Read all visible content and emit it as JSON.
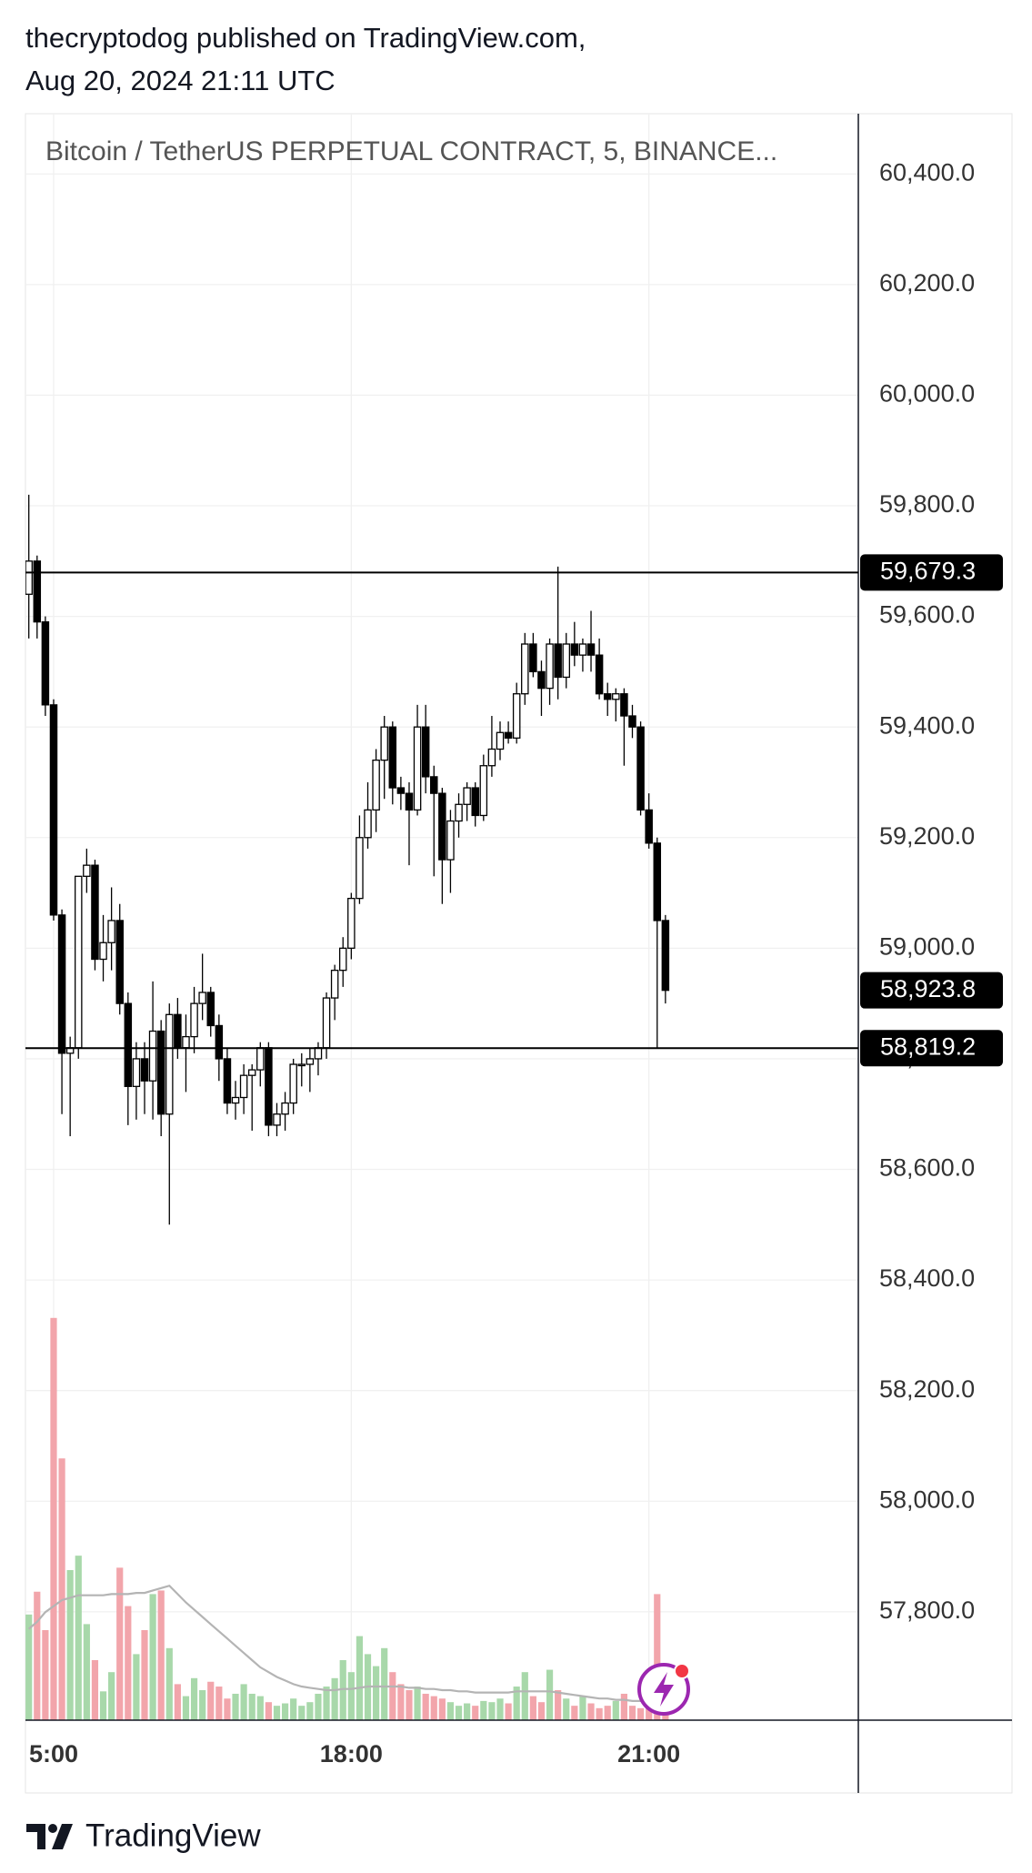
{
  "header": {
    "line1": "thecryptodog published on TradingView.com,",
    "line2": "Aug 20, 2024 21:11 UTC"
  },
  "chart_data": {
    "type": "candlestick",
    "title": "Bitcoin / TetherUS PERPETUAL CONTRACT, 5, BINANCE...",
    "categories": [
      null,
      null,
      null,
      "5:00",
      null,
      null,
      null,
      null,
      null,
      null,
      null,
      null,
      null,
      null,
      null,
      null,
      null,
      null,
      null,
      null,
      null,
      null,
      null,
      null,
      null,
      null,
      null,
      null,
      null,
      null,
      null,
      null,
      null,
      null,
      null,
      null,
      null,
      null,
      null,
      "18:00",
      null,
      null,
      null,
      null,
      null,
      null,
      null,
      null,
      null,
      null,
      null,
      null,
      null,
      null,
      null,
      null,
      null,
      null,
      null,
      null,
      null,
      null,
      null,
      null,
      null,
      null,
      null,
      null,
      null,
      null,
      null,
      null,
      null,
      null,
      null,
      "21:00",
      null,
      null
    ],
    "open": [
      59640,
      59700,
      59590,
      59440,
      59060,
      58810,
      58820,
      59130,
      59150,
      58980,
      59010,
      59050,
      58900,
      58750,
      58800,
      58760,
      58850,
      58700,
      58880,
      58820,
      58840,
      58900,
      58920,
      58860,
      58800,
      58720,
      58730,
      58770,
      58780,
      58820,
      58680,
      58700,
      58720,
      58790,
      58790,
      58800,
      58820,
      58910,
      58960,
      59000,
      59090,
      59200,
      59250,
      59340,
      59400,
      59290,
      59280,
      59250,
      59400,
      59310,
      59280,
      59160,
      59230,
      59260,
      59290,
      59240,
      59330,
      59360,
      59390,
      59380,
      59460,
      59550,
      59500,
      59470,
      59550,
      59490,
      59550,
      59530,
      59550,
      59530,
      59460,
      59450,
      59460,
      59420,
      59400,
      59250,
      59190,
      59050
    ],
    "high": [
      59820,
      59710,
      59600,
      59450,
      59070,
      58840,
      59130,
      59180,
      59160,
      59060,
      59110,
      59080,
      58920,
      58830,
      58830,
      58940,
      58870,
      58900,
      58910,
      58880,
      58930,
      58990,
      58930,
      58880,
      58820,
      58760,
      58790,
      58790,
      58830,
      58830,
      58720,
      58740,
      58800,
      58810,
      58820,
      58830,
      58920,
      58970,
      59020,
      59100,
      59240,
      59300,
      59360,
      59420,
      59410,
      59310,
      59300,
      59440,
      59440,
      59330,
      59290,
      59250,
      59280,
      59300,
      59300,
      59350,
      59420,
      59410,
      59410,
      59480,
      59570,
      59570,
      59520,
      59560,
      59690,
      59570,
      59590,
      59560,
      59610,
      59560,
      59480,
      59470,
      59470,
      59440,
      59410,
      59280,
      59200,
      59060
    ],
    "low": [
      59560,
      59560,
      59420,
      59050,
      58700,
      58660,
      58800,
      59100,
      58960,
      58940,
      58960,
      58880,
      58680,
      58690,
      58700,
      58690,
      58660,
      58500,
      58800,
      58740,
      58810,
      58870,
      58840,
      58760,
      58700,
      58690,
      58700,
      58670,
      58750,
      58660,
      58660,
      58670,
      58700,
      58750,
      58740,
      58770,
      58800,
      58870,
      58930,
      58980,
      59080,
      59180,
      59210,
      59270,
      59260,
      59250,
      59150,
      59240,
      59280,
      59130,
      59080,
      59100,
      59200,
      59230,
      59220,
      59230,
      59310,
      59340,
      59370,
      59370,
      59440,
      59490,
      59420,
      59440,
      59450,
      59470,
      59510,
      59500,
      59500,
      59450,
      59420,
      59410,
      59330,
      59380,
      59240,
      59180,
      58820,
      58900
    ],
    "close": [
      59700,
      59590,
      59440,
      59060,
      58810,
      58820,
      59130,
      59150,
      58980,
      59010,
      59050,
      58900,
      58750,
      58800,
      58760,
      58850,
      58700,
      58880,
      58820,
      58840,
      58900,
      58920,
      58860,
      58800,
      58720,
      58730,
      58770,
      58780,
      58820,
      58680,
      58700,
      58720,
      58790,
      58790,
      58800,
      58820,
      58910,
      58960,
      59000,
      59090,
      59200,
      59250,
      59340,
      59400,
      59290,
      59280,
      59250,
      59400,
      59310,
      59280,
      59160,
      59230,
      59260,
      59290,
      59240,
      59330,
      59360,
      59390,
      59380,
      59460,
      59550,
      59500,
      59470,
      59550,
      59490,
      59550,
      59530,
      59550,
      59530,
      59460,
      59450,
      59460,
      59420,
      59400,
      59250,
      59190,
      59050,
      58923.8
    ],
    "up_color": "#ffffff",
    "down_color": "#000000",
    "ylim": [
      57604,
      60509
    ],
    "yticks": [
      {
        "value": 57800,
        "label": "57,800.0"
      },
      {
        "value": 58000,
        "label": "58,000.0"
      },
      {
        "value": 58200,
        "label": "58,200.0"
      },
      {
        "value": 58400,
        "label": "58,400.0"
      },
      {
        "value": 58600,
        "label": "58,600.0"
      },
      {
        "value": 58800,
        "label": "58,800.0"
      },
      {
        "value": 59000,
        "label": "59,000.0"
      },
      {
        "value": 59200,
        "label": "59,200.0"
      },
      {
        "value": 59400,
        "label": "59,400.0"
      },
      {
        "value": 59600,
        "label": "59,600.0"
      },
      {
        "value": 59800,
        "label": "59,800.0"
      },
      {
        "value": 60000,
        "label": "60,000.0"
      },
      {
        "value": 60200,
        "label": "60,200.0"
      },
      {
        "value": 60400,
        "label": "60,400.0"
      }
    ],
    "grid": true,
    "volume": {
      "values": [
        88,
        107,
        75,
        335,
        218,
        125,
        137,
        80,
        50,
        24,
        40,
        127,
        95,
        55,
        75,
        105,
        108,
        60,
        30,
        20,
        35,
        25,
        32,
        28,
        18,
        22,
        30,
        22,
        20,
        15,
        12,
        14,
        18,
        12,
        15,
        22,
        28,
        35,
        50,
        40,
        70,
        55,
        45,
        60,
        40,
        30,
        25,
        28,
        22,
        20,
        18,
        15,
        12,
        14,
        12,
        16,
        15,
        18,
        14,
        28,
        40,
        20,
        15,
        42,
        25,
        18,
        12,
        20,
        14,
        10,
        12,
        16,
        22,
        12,
        10,
        18,
        105,
        15
      ],
      "ma": [
        76,
        82,
        90,
        95,
        100,
        102,
        104,
        104,
        104,
        104,
        105,
        105,
        105,
        106,
        106,
        108,
        110,
        112,
        105,
        98,
        92,
        86,
        80,
        74,
        68,
        62,
        56,
        50,
        44,
        40,
        36,
        33,
        30,
        28,
        27,
        26,
        25,
        25,
        26,
        26,
        27,
        28,
        28,
        28,
        28,
        28,
        27,
        27,
        26,
        26,
        25,
        25,
        24,
        24,
        23,
        23,
        23,
        23,
        23,
        24,
        24,
        24,
        24,
        24,
        23,
        22,
        21,
        20,
        19,
        18,
        18,
        17,
        17,
        16,
        16,
        16,
        18,
        18
      ],
      "ylim": [
        0,
        350
      ],
      "up_color": "#a8d8aa",
      "down_color": "#f2a5ab",
      "ma_color": "#b4b4b4"
    },
    "horizontal_lines": [
      {
        "value": 59679.3,
        "label": "59,679.3"
      },
      {
        "value": 58819.2,
        "label": "58,819.2"
      }
    ],
    "last_price": {
      "value": 58923.8,
      "label": "58,923.8"
    }
  },
  "footer": {
    "brand": "TradingView"
  }
}
